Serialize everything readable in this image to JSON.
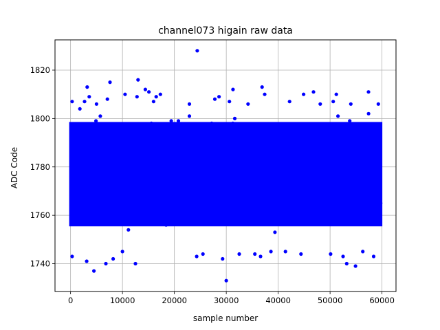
{
  "chart_data": {
    "type": "scatter",
    "title": "channel073 higain raw data",
    "xlabel": "sample number",
    "ylabel": "ADC Code",
    "xlim": [
      -3000,
      62700
    ],
    "ylim": [
      1728.5,
      1832.5
    ],
    "x_ticks": [
      0,
      10000,
      20000,
      30000,
      40000,
      50000,
      60000
    ],
    "y_ticks": [
      1740,
      1760,
      1780,
      1800,
      1820
    ],
    "grid": true,
    "marker_color": "#0000ff",
    "series": [
      {
        "band": {
          "x_range": [
            0,
            59800
          ],
          "y_range": [
            1752,
            1802
          ],
          "dense_y_range": [
            1756,
            1798
          ]
        },
        "outliers": [
          {
            "x": 300,
            "y": 1807
          },
          {
            "x": 300,
            "y": 1743
          },
          {
            "x": 1800,
            "y": 1804
          },
          {
            "x": 2700,
            "y": 1807
          },
          {
            "x": 3100,
            "y": 1741
          },
          {
            "x": 3200,
            "y": 1813
          },
          {
            "x": 3600,
            "y": 1809
          },
          {
            "x": 4500,
            "y": 1737
          },
          {
            "x": 5000,
            "y": 1806
          },
          {
            "x": 6800,
            "y": 1740
          },
          {
            "x": 7100,
            "y": 1808
          },
          {
            "x": 7600,
            "y": 1815
          },
          {
            "x": 8200,
            "y": 1742
          },
          {
            "x": 10000,
            "y": 1745
          },
          {
            "x": 10500,
            "y": 1810
          },
          {
            "x": 12500,
            "y": 1740
          },
          {
            "x": 12800,
            "y": 1809
          },
          {
            "x": 13000,
            "y": 1816
          },
          {
            "x": 14400,
            "y": 1812
          },
          {
            "x": 15100,
            "y": 1811
          },
          {
            "x": 16000,
            "y": 1807
          },
          {
            "x": 16500,
            "y": 1809
          },
          {
            "x": 17300,
            "y": 1810
          },
          {
            "x": 22900,
            "y": 1806
          },
          {
            "x": 24400,
            "y": 1828
          },
          {
            "x": 24300,
            "y": 1743
          },
          {
            "x": 25500,
            "y": 1744
          },
          {
            "x": 27800,
            "y": 1808
          },
          {
            "x": 28600,
            "y": 1809
          },
          {
            "x": 29300,
            "y": 1742
          },
          {
            "x": 30000,
            "y": 1733
          },
          {
            "x": 30600,
            "y": 1807
          },
          {
            "x": 31300,
            "y": 1812
          },
          {
            "x": 32500,
            "y": 1744
          },
          {
            "x": 34200,
            "y": 1806
          },
          {
            "x": 35500,
            "y": 1744
          },
          {
            "x": 36600,
            "y": 1743
          },
          {
            "x": 36900,
            "y": 1813
          },
          {
            "x": 37400,
            "y": 1810
          },
          {
            "x": 38600,
            "y": 1745
          },
          {
            "x": 41400,
            "y": 1745
          },
          {
            "x": 42200,
            "y": 1807
          },
          {
            "x": 44400,
            "y": 1744
          },
          {
            "x": 44900,
            "y": 1810
          },
          {
            "x": 46800,
            "y": 1811
          },
          {
            "x": 48100,
            "y": 1806
          },
          {
            "x": 50100,
            "y": 1744
          },
          {
            "x": 50600,
            "y": 1807
          },
          {
            "x": 51200,
            "y": 1810
          },
          {
            "x": 52500,
            "y": 1743
          },
          {
            "x": 53200,
            "y": 1740
          },
          {
            "x": 54000,
            "y": 1806
          },
          {
            "x": 54900,
            "y": 1739
          },
          {
            "x": 56300,
            "y": 1745
          },
          {
            "x": 57400,
            "y": 1811
          },
          {
            "x": 58400,
            "y": 1743
          },
          {
            "x": 59300,
            "y": 1806
          }
        ]
      }
    ]
  }
}
